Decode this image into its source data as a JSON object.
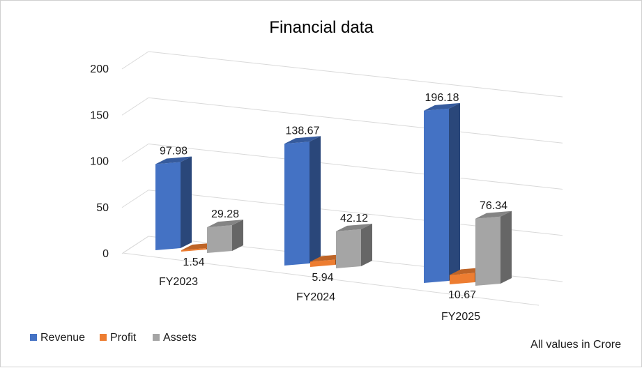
{
  "chart_data": {
    "type": "bar",
    "title": "Financial data",
    "categories": [
      "FY2023",
      "FY2024",
      "FY2025"
    ],
    "series": [
      {
        "name": "Revenue",
        "values": [
          97.98,
          138.67,
          196.18
        ],
        "color": "#4472C4"
      },
      {
        "name": "Profit",
        "values": [
          1.54,
          5.94,
          10.67
        ],
        "color": "#ED7D31"
      },
      {
        "name": "Assets",
        "values": [
          29.28,
          42.12,
          76.34
        ],
        "color": "#A5A5A5"
      }
    ],
    "data_labels": [
      [
        "97.98",
        "138.67",
        "196.18"
      ],
      [
        "1.54",
        "5.94",
        "10.67"
      ],
      [
        "29.28",
        "42.12",
        "76.34"
      ]
    ],
    "yticks": [
      "0",
      "50",
      "100",
      "150",
      "200"
    ],
    "ylim": [
      0,
      200
    ],
    "grid": true,
    "legend_position": "bottom-left",
    "footnote": "All values in Crore"
  }
}
